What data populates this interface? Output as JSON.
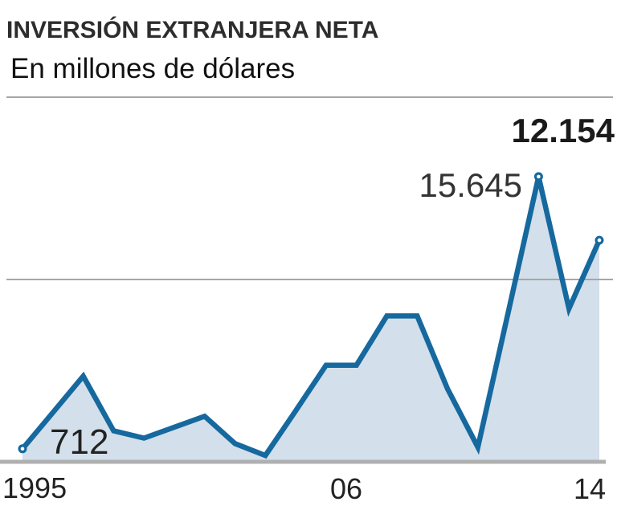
{
  "header": {
    "title": "INVERSIÓN EXTRANJERA NETA",
    "subtitle": "En millones de dólares"
  },
  "chart_data": {
    "type": "area",
    "title": "INVERSIÓN EXTRANJERA NETA",
    "subtitle": "En millones de dólares",
    "unit": "millones de dólares",
    "x": [
      1995,
      1996,
      1997,
      1998,
      1999,
      2000,
      2001,
      2002,
      2003,
      2004,
      2005,
      2006,
      2007,
      2008,
      2009,
      2010,
      2011,
      2012,
      2013,
      2014
    ],
    "values": [
      712,
      2700,
      4700,
      1700,
      1300,
      1900,
      2500,
      1000,
      350,
      2800,
      5300,
      5300,
      8000,
      8000,
      4000,
      800,
      8200,
      15645,
      8400,
      12154
    ],
    "labeled_points": [
      {
        "year": 1995,
        "value": 712,
        "label": "712",
        "bold": false
      },
      {
        "year": 2012,
        "value": 15645,
        "label": "15.645",
        "bold": false
      },
      {
        "year": 2014,
        "value": 12154,
        "label": "12.154",
        "bold": true
      }
    ],
    "x_tick_labels": [
      {
        "year": 1995,
        "label": "1995"
      },
      {
        "year": 2006,
        "label": "06"
      },
      {
        "year": 2014,
        "label": "14"
      }
    ],
    "marker_years": [
      1995,
      2012,
      2014
    ],
    "ylim": [
      0,
      20000
    ],
    "gridline_values": [
      10000,
      20000
    ],
    "grid": "horizontal-only",
    "legend": "none",
    "colors": {
      "line": "#16699e",
      "fill": "#d3dfea",
      "grid": "#a6a6a6",
      "baseline": "#b0b0b0",
      "title_text": "#2d2d2d",
      "label_text": "#222222"
    }
  }
}
